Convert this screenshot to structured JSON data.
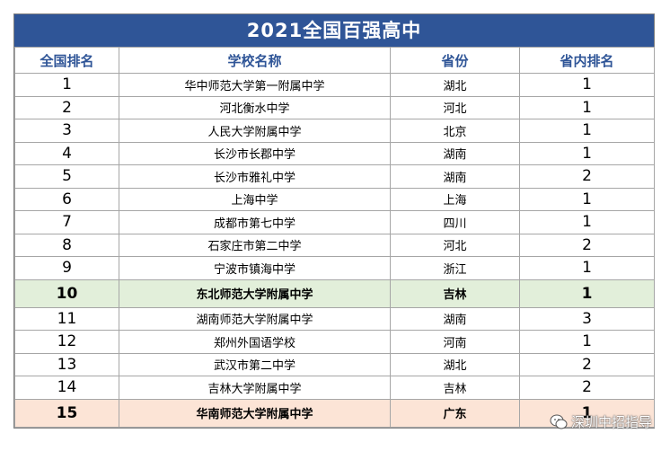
{
  "title": "2021全国百强高中",
  "headers": [
    "全国排名",
    "学校名称",
    "省份",
    "省内排名"
  ],
  "rows": [
    {
      "rank": "1",
      "school": "华中师范大学第一附属中学",
      "province": "湖北",
      "prov_rank": "1"
    },
    {
      "rank": "2",
      "school": "河北衡水中学",
      "province": "河北",
      "prov_rank": "1"
    },
    {
      "rank": "3",
      "school": "人民大学附属中学",
      "province": "北京",
      "prov_rank": "1"
    },
    {
      "rank": "4",
      "school": "长沙市长郡中学",
      "province": "湖南",
      "prov_rank": "1"
    },
    {
      "rank": "5",
      "school": "长沙市雅礼中学",
      "province": "湖南",
      "prov_rank": "2"
    },
    {
      "rank": "6",
      "school": "上海中学",
      "province": "上海",
      "prov_rank": "1"
    },
    {
      "rank": "7",
      "school": "成都市第七中学",
      "province": "四川",
      "prov_rank": "1"
    },
    {
      "rank": "8",
      "school": "石家庄市第二中学",
      "province": "河北",
      "prov_rank": "2"
    },
    {
      "rank": "9",
      "school": "宁波市镇海中学",
      "province": "浙江",
      "prov_rank": "1"
    },
    {
      "rank": "10",
      "school": "东北师范大学附属中学",
      "province": "吉林",
      "prov_rank": "1"
    },
    {
      "rank": "11",
      "school": "湖南师范大学附属中学",
      "province": "湖南",
      "prov_rank": "3"
    },
    {
      "rank": "12",
      "school": "郑州外国语学校",
      "province": "河南",
      "prov_rank": "1"
    },
    {
      "rank": "13",
      "school": "武汉市第二中学",
      "province": "湖北",
      "prov_rank": "2"
    },
    {
      "rank": "14",
      "school": "吉林大学附属中学",
      "province": "吉林",
      "prov_rank": "2"
    },
    {
      "rank": "15",
      "school": "华南师范大学附属中学",
      "province": "广东",
      "prov_rank": "1"
    }
  ],
  "watermark": "深圳中招指导",
  "colors": {
    "title_bg": "#2f5597",
    "header_text": "#2f5597",
    "highlight_green": "#e2efda",
    "highlight_orange": "#fce4d6"
  }
}
